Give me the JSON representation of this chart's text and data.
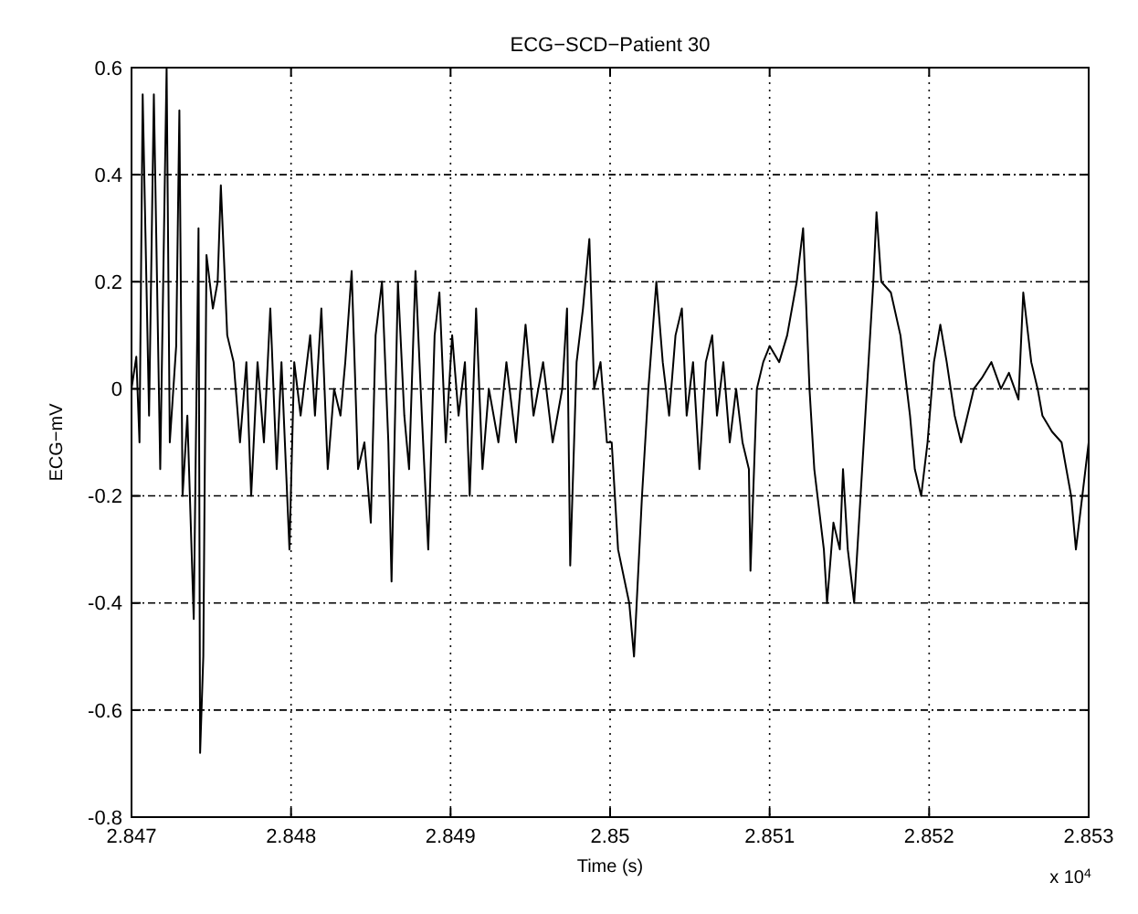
{
  "chart_data": {
    "type": "line",
    "title": "ECG−SCD−Patient 30",
    "xlabel": "Time (s)",
    "ylabel": "ECG−mV",
    "annotations": [
      "x 10$^{4}$"
    ],
    "xlim": [
      2.847,
      2.853
    ],
    "xticks": [
      2.847,
      2.848,
      2.849,
      2.85,
      2.851,
      2.852,
      2.853
    ],
    "ylim": [
      -0.8,
      0.6
    ],
    "yticks": [
      -0.8,
      -0.6,
      -0.4,
      -0.2,
      0,
      0.2,
      0.4,
      0.6
    ],
    "grid": true,
    "line_style": "solid",
    "marker": "none",
    "series": [
      {
        "color": "#000000",
        "x": [
          2.847,
          2.84703,
          2.84705,
          2.84707,
          2.84711,
          2.84714,
          2.84718,
          2.84722,
          2.84724,
          2.84728,
          2.8473,
          2.84732,
          2.84735,
          2.84739,
          2.84742,
          2.84743,
          2.84745,
          2.84747,
          2.84751,
          2.84754,
          2.84756,
          2.8476,
          2.84764,
          2.84768,
          2.84772,
          2.84775,
          2.84779,
          2.84783,
          2.84787,
          2.84791,
          2.84794,
          2.84799,
          2.84802,
          2.84806,
          2.84812,
          2.84815,
          2.84819,
          2.84823,
          2.84827,
          2.84831,
          2.84834,
          2.84838,
          2.84842,
          2.84846,
          2.8485,
          2.84853,
          2.84857,
          2.84861,
          2.84863,
          2.84867,
          2.84871,
          2.84874,
          2.84878,
          2.84882,
          2.84886,
          2.8489,
          2.84893,
          2.84897,
          2.84901,
          2.84905,
          2.84909,
          2.84912,
          2.84916,
          2.8492,
          2.84924,
          2.8493,
          2.84935,
          2.84941,
          2.84947,
          2.84952,
          2.84958,
          2.84964,
          2.8497,
          2.84973,
          2.84975,
          2.84979,
          2.84983,
          2.84987,
          2.8499,
          2.84994,
          2.84998,
          2.85001,
          2.85005,
          2.85012,
          2.85015,
          2.8502,
          2.85024,
          2.85029,
          2.85033,
          2.85037,
          2.85041,
          2.85045,
          2.85048,
          2.85052,
          2.85056,
          2.8506,
          2.85064,
          2.85067,
          2.85071,
          2.85075,
          2.85079,
          2.85083,
          2.85087,
          2.85088,
          2.85092,
          2.85096,
          2.851,
          2.85106,
          2.85111,
          2.85117,
          2.85121,
          2.85125,
          2.85128,
          2.85134,
          2.85136,
          2.8514,
          2.85144,
          2.85146,
          2.85149,
          2.85153,
          2.85157,
          2.85161,
          2.85165,
          2.85167,
          2.8517,
          2.85176,
          2.85182,
          2.85188,
          2.85191,
          2.85195,
          2.85199,
          2.85203,
          2.85207,
          2.85211,
          2.85216,
          2.8522,
          2.85224,
          2.85228,
          2.85233,
          2.85239,
          2.85245,
          2.8525,
          2.85256,
          2.85259,
          2.85264,
          2.85268,
          2.85271,
          2.85277,
          2.85283,
          2.85289,
          2.85292,
          2.85296,
          2.853
        ],
        "values": [
          0,
          0.06,
          -0.1,
          0.55,
          -0.05,
          0.55,
          -0.15,
          0.6,
          -0.1,
          0.08,
          0.52,
          -0.2,
          -0.05,
          -0.43,
          0.3,
          -0.68,
          -0.5,
          0.25,
          0.15,
          0.2,
          0.38,
          0.1,
          0.05,
          -0.1,
          0.05,
          -0.2,
          0.05,
          -0.1,
          0.15,
          -0.15,
          0.05,
          -0.3,
          0.05,
          -0.05,
          0.1,
          -0.05,
          0.15,
          -0.15,
          0,
          -0.05,
          0.05,
          0.22,
          -0.15,
          -0.1,
          -0.25,
          0.1,
          0.2,
          -0.1,
          -0.36,
          0.2,
          -0.05,
          -0.15,
          0.22,
          -0.05,
          -0.3,
          0.1,
          0.18,
          -0.1,
          0.1,
          -0.05,
          0.05,
          -0.2,
          0.15,
          -0.15,
          0,
          -0.1,
          0.05,
          -0.1,
          0.12,
          -0.05,
          0.05,
          -0.1,
          0,
          0.15,
          -0.33,
          0.05,
          0.15,
          0.28,
          0,
          0.05,
          -0.1,
          -0.1,
          -0.3,
          -0.4,
          -0.5,
          -0.2,
          0,
          0.2,
          0.05,
          -0.05,
          0.1,
          0.15,
          -0.05,
          0.05,
          -0.15,
          0.05,
          0.1,
          -0.05,
          0.05,
          -0.1,
          0,
          -0.1,
          -0.15,
          -0.34,
          0,
          0.05,
          0.08,
          0.05,
          0.1,
          0.2,
          0.3,
          0,
          -0.15,
          -0.3,
          -0.4,
          -0.25,
          -0.3,
          -0.15,
          -0.3,
          -0.4,
          -0.2,
          0,
          0.2,
          0.33,
          0.2,
          0.18,
          0.1,
          -0.05,
          -0.15,
          -0.2,
          -0.1,
          0.05,
          0.12,
          0.05,
          -0.05,
          -0.1,
          -0.05,
          0,
          0.02,
          0.05,
          0,
          0.03,
          -0.02,
          0.18,
          0.05,
          0,
          -0.05,
          -0.08,
          -0.1,
          -0.2,
          -0.3,
          -0.2,
          -0.1
        ]
      }
    ]
  }
}
